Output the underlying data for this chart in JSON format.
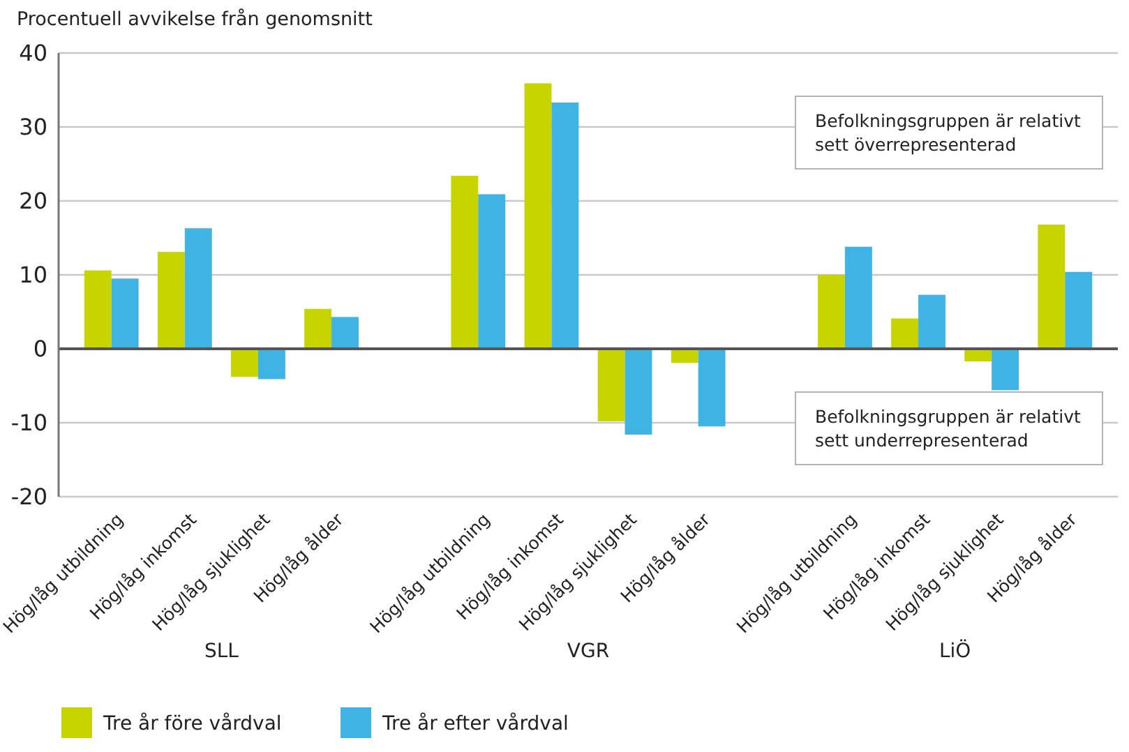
{
  "chart_data": {
    "type": "bar",
    "ylabel": "Procentuell avvikelse från genomsnitt",
    "categories": [
      "Hög/låg utbildning",
      "Hög/låg inkomst",
      "Hög/låg sjuklighet",
      "Hög/låg ålder",
      null,
      "Hög/låg utbildning",
      "Hög/låg inkomst",
      "Hög/låg sjuklighet",
      "Hög/låg ålder",
      null,
      "Hög/låg utbildning",
      "Hög/låg inkomst",
      "Hög/låg sjuklighet",
      "Hög/låg ålder"
    ],
    "series": [
      {
        "name": "Tre år före vårdval",
        "color": "#c8d400",
        "values": [
          10.6,
          13.1,
          -3.8,
          5.4,
          null,
          23.4,
          35.9,
          -9.8,
          -1.9,
          null,
          10.0,
          4.1,
          -1.7,
          16.8
        ]
      },
      {
        "name": "Tre år efter vårdval",
        "color": "#3fb3e3",
        "values": [
          9.5,
          16.3,
          -4.1,
          4.3,
          null,
          20.9,
          33.3,
          -11.6,
          -10.5,
          null,
          13.8,
          7.3,
          -5.6,
          10.4
        ]
      }
    ],
    "ylim": [
      -20,
      40
    ],
    "yticks": [
      -20,
      -10,
      0,
      10,
      20,
      30,
      40
    ],
    "grid": "y",
    "legend": "bottom left",
    "annotations": [
      "SLL",
      "VGR",
      "LiÖ",
      "Befolkningsgruppen är relativt sett överrepresenterad",
      "Befolkningsgruppen är relativt sett underrepresenterad"
    ]
  }
}
